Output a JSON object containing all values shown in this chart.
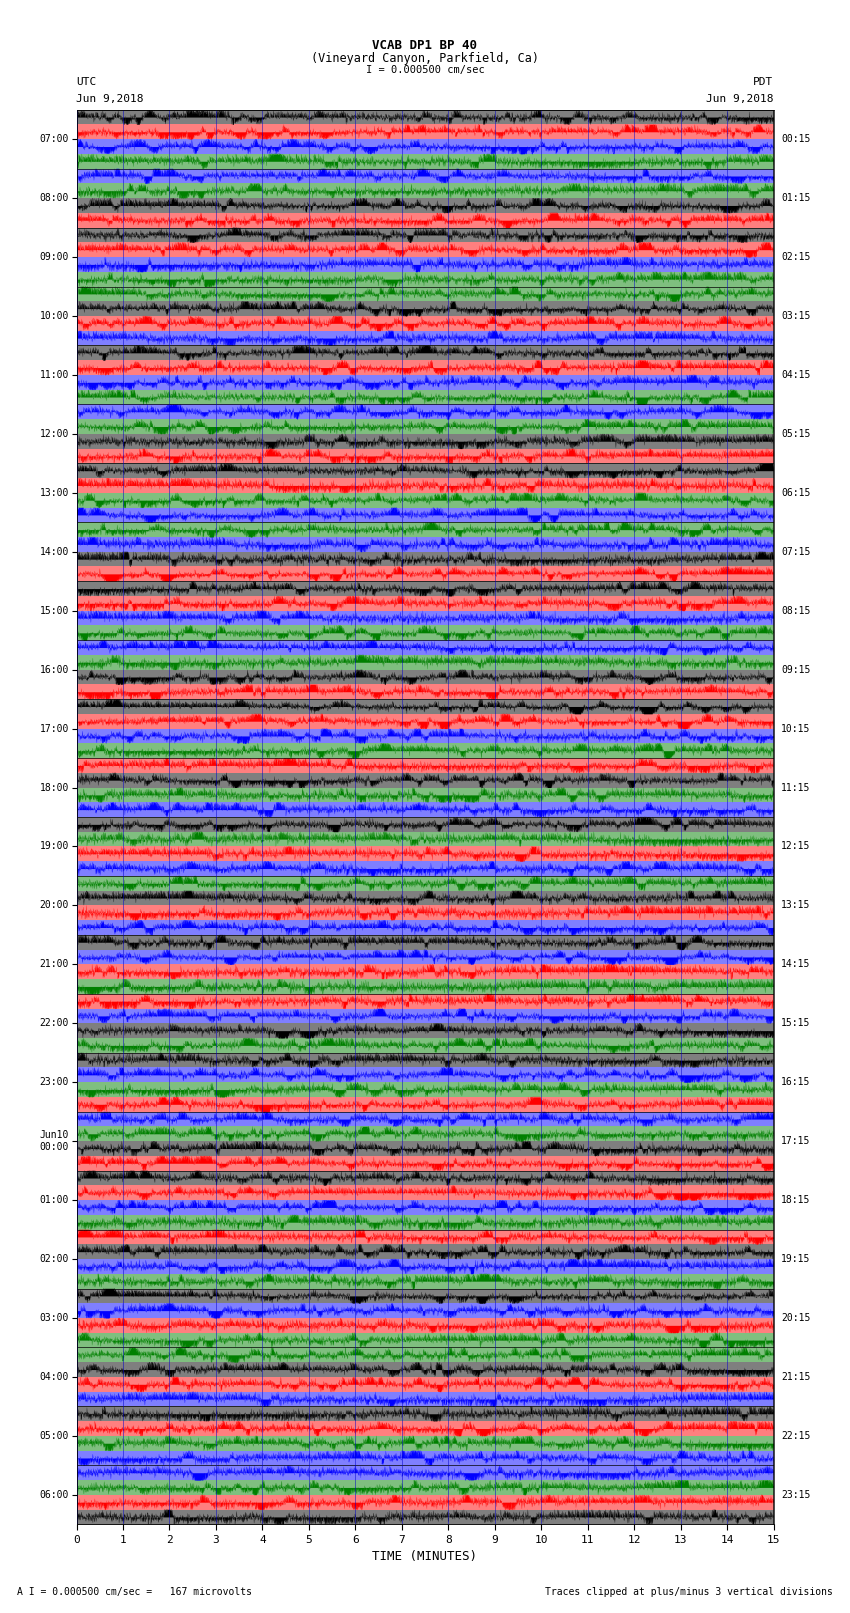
{
  "title_line1": "VCAB DP1 BP 40",
  "title_line2": "(Vineyard Canyon, Parkfield, Ca)",
  "scale_text": "I = 0.000500 cm/sec",
  "left_label": "UTC",
  "right_label": "PDT",
  "left_date": "Jun 9,2018",
  "right_date": "Jun 9,2018",
  "bottom_label": "TIME (MINUTES)",
  "footer_left": "A I = 0.000500 cm/sec =   167 microvolts",
  "footer_right": "Traces clipped at plus/minus 3 vertical divisions",
  "utc_times": [
    "07:00",
    "08:00",
    "09:00",
    "10:00",
    "11:00",
    "12:00",
    "13:00",
    "14:00",
    "15:00",
    "16:00",
    "17:00",
    "18:00",
    "19:00",
    "20:00",
    "21:00",
    "22:00",
    "23:00",
    "Jun10\n00:00",
    "01:00",
    "02:00",
    "03:00",
    "04:00",
    "05:00",
    "06:00"
  ],
  "pdt_times": [
    "00:15",
    "01:15",
    "02:15",
    "03:15",
    "04:15",
    "05:15",
    "06:15",
    "07:15",
    "08:15",
    "09:15",
    "10:15",
    "11:15",
    "12:15",
    "13:15",
    "14:15",
    "15:15",
    "16:15",
    "17:15",
    "18:15",
    "19:15",
    "20:15",
    "21:15",
    "22:15",
    "23:15"
  ],
  "n_rows": 24,
  "n_minutes": 15,
  "fig_width": 8.5,
  "fig_height": 16.13,
  "bg_color": "white",
  "seed": 42,
  "sub_band_order": [
    "black",
    "red",
    "blue",
    "green"
  ],
  "color_hex": {
    "red": "#ff0000",
    "green": "#008000",
    "blue": "#0000ff",
    "black": "#000000"
  }
}
